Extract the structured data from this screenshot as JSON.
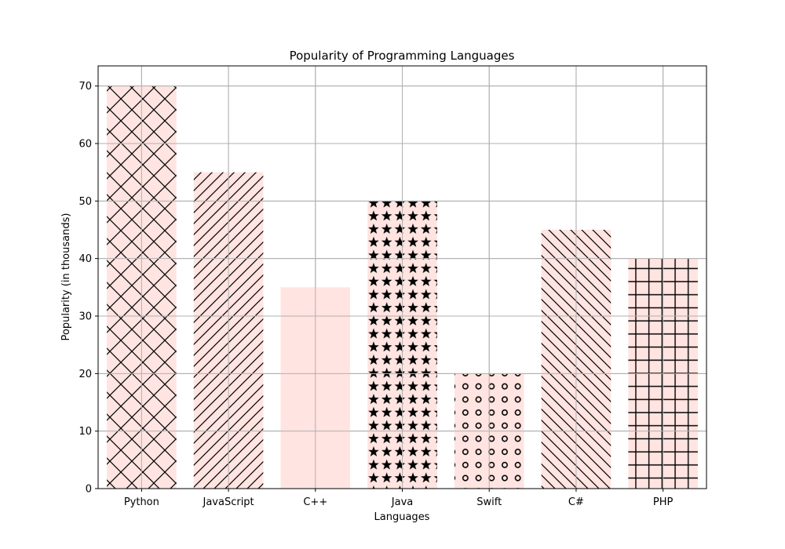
{
  "chart_data": {
    "type": "bar",
    "title": "Popularity of Programming Languages",
    "xlabel": "Languages",
    "ylabel": "Popularity (in thousands)",
    "categories": [
      "Python",
      "JavaScript",
      "C++",
      "Java",
      "Swift",
      "C#",
      "PHP"
    ],
    "values": [
      70,
      55,
      35,
      50,
      20,
      45,
      40
    ],
    "hatches": [
      "x",
      "/",
      "",
      "*",
      "o",
      "\\",
      "+"
    ],
    "bar_color": "#ffe4e1",
    "hatch_color": "#000000",
    "ylim": [
      0,
      73.5
    ],
    "yticks": [
      0,
      10,
      20,
      30,
      40,
      50,
      60,
      70
    ],
    "grid": true
  }
}
